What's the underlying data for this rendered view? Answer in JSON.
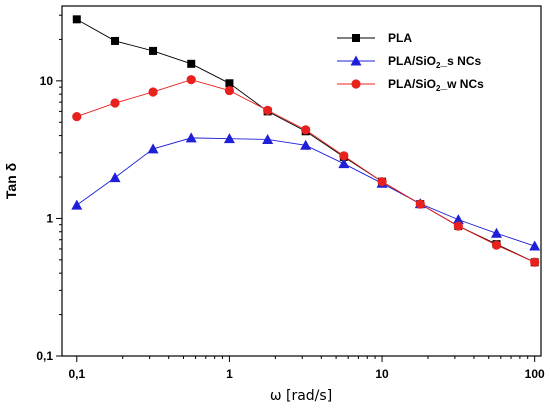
{
  "chart_data": {
    "type": "line",
    "xscale": "log",
    "yscale": "log",
    "xlim": [
      0.08,
      110
    ],
    "ylim": [
      0.1,
      35
    ],
    "xlabel": "ω [rad/s]",
    "ylabel": "Tan δ",
    "x_ticks": [
      {
        "value": 0.1,
        "label": "0,1"
      },
      {
        "value": 1,
        "label": "1"
      },
      {
        "value": 10,
        "label": "10"
      },
      {
        "value": 100,
        "label": "100"
      }
    ],
    "y_ticks": [
      {
        "value": 0.1,
        "label": "0,1"
      },
      {
        "value": 1,
        "label": "1"
      },
      {
        "value": 10,
        "label": "10"
      }
    ],
    "x": [
      0.1,
      0.178,
      0.316,
      0.562,
      1,
      1.78,
      3.16,
      5.62,
      10,
      17.8,
      31.6,
      56.2,
      100
    ],
    "series": [
      {
        "name": "PLA",
        "marker": "square",
        "color": "#000000",
        "values": [
          28,
          19.5,
          16.5,
          13.3,
          9.6,
          6.0,
          4.3,
          2.8,
          1.85,
          1.27,
          0.88,
          0.65,
          0.48
        ]
      },
      {
        "name": "PLA/SiO2_s NCs",
        "legend_main": "PLA/SiO",
        "legend_sub": "2",
        "legend_rest": "_s NCs",
        "marker": "triangle",
        "color": "#1f1fd8",
        "values": [
          1.25,
          1.98,
          3.2,
          3.85,
          3.8,
          3.75,
          3.4,
          2.5,
          1.8,
          1.28,
          0.98,
          0.78,
          0.63
        ]
      },
      {
        "name": "PLA/SiO2_w NCs",
        "legend_main": "PLA/SiO",
        "legend_sub": "2",
        "legend_rest": "_w NCs",
        "marker": "circle",
        "color": "#e8201e",
        "values": [
          5.5,
          6.9,
          8.3,
          10.2,
          8.5,
          6.1,
          4.4,
          2.85,
          1.85,
          1.27,
          0.88,
          0.64,
          0.48
        ]
      }
    ],
    "legend": "top-right",
    "grid": false
  }
}
